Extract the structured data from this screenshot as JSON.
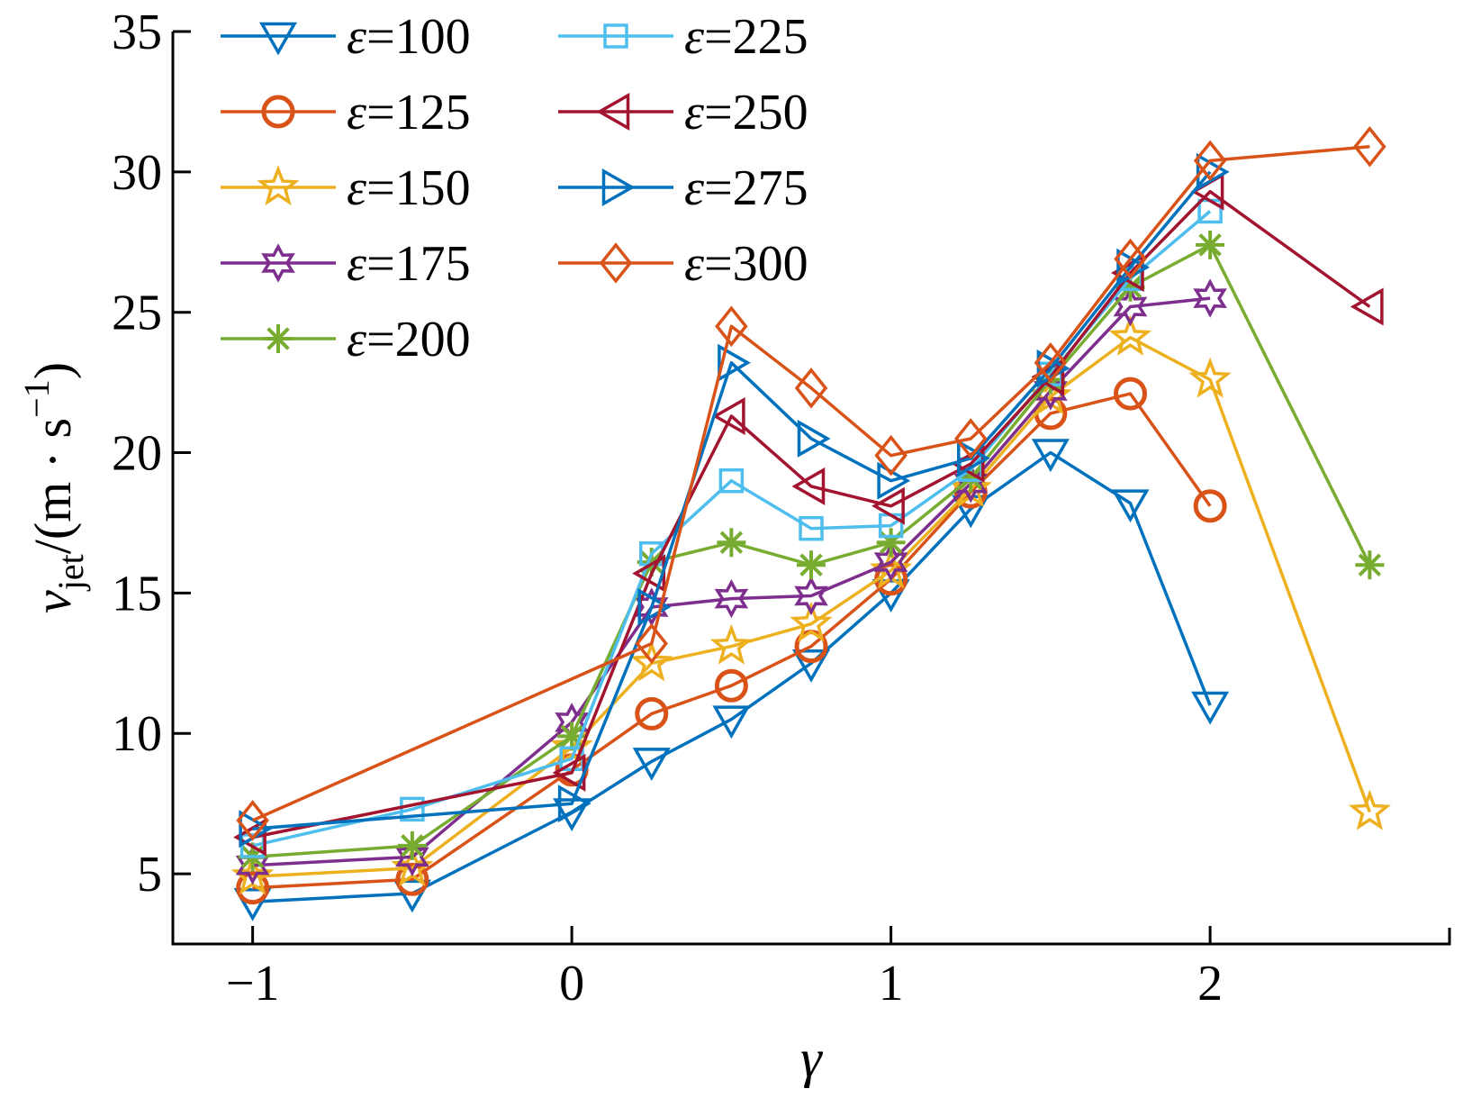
{
  "chart_data": {
    "type": "line",
    "title": "",
    "xlabel": "γ",
    "ylabel": "v_jet/(m·s⁻¹)",
    "ylabel_parts": {
      "var": "v",
      "sub": "jet",
      "unit_open": "/(m · s",
      "sup": "−1",
      "unit_close": ")"
    },
    "xlim": [
      -1.25,
      2.75
    ],
    "ylim": [
      2.5,
      35
    ],
    "xticks": [
      -1,
      0,
      1,
      2
    ],
    "xtick_labels": [
      "−1",
      "0",
      "1",
      "2"
    ],
    "yticks": [
      5,
      10,
      15,
      20,
      25,
      30,
      35
    ],
    "ytick_labels": [
      "5",
      "10",
      "15",
      "20",
      "25",
      "30",
      "35"
    ],
    "grid": false,
    "legend_position": "top-left",
    "legend_label_prefix": "ε",
    "legend_label_eq": "=",
    "series": [
      {
        "name": "ε=100",
        "legend_value": "100",
        "color": "#0072BD",
        "marker": "triangle-down",
        "x": [
          -1,
          -0.5,
          0,
          0.25,
          0.5,
          0.75,
          1,
          1.25,
          1.5,
          1.75,
          2
        ],
        "y": [
          4.0,
          4.3,
          7.2,
          9.0,
          10.5,
          12.5,
          15.0,
          18.0,
          20.0,
          18.2,
          11.0
        ]
      },
      {
        "name": "ε=125",
        "legend_value": "125",
        "color": "#D95319",
        "marker": "circle",
        "x": [
          -1,
          -0.5,
          0,
          0.25,
          0.5,
          0.75,
          1,
          1.25,
          1.5,
          1.75,
          2
        ],
        "y": [
          4.5,
          4.8,
          8.7,
          10.7,
          11.7,
          13.1,
          15.5,
          18.6,
          21.4,
          22.1,
          18.1
        ]
      },
      {
        "name": "ε=150",
        "legend_value": "150",
        "color": "#EDB120",
        "marker": "star5",
        "x": [
          -1,
          -0.5,
          0,
          0.25,
          0.5,
          0.75,
          1,
          1.25,
          1.5,
          1.75,
          2,
          2.5
        ],
        "y": [
          4.9,
          5.2,
          9.5,
          12.5,
          13.1,
          13.9,
          15.8,
          18.7,
          22.0,
          24.1,
          22.6,
          7.2
        ]
      },
      {
        "name": "ε=175",
        "legend_value": "175",
        "color": "#7E2F8E",
        "marker": "star6",
        "x": [
          -1,
          -0.5,
          0,
          0.25,
          0.5,
          0.75,
          1,
          1.25,
          1.5,
          1.75,
          2
        ],
        "y": [
          5.3,
          5.6,
          10.4,
          14.5,
          14.8,
          14.9,
          16.1,
          18.9,
          22.2,
          25.2,
          25.5
        ]
      },
      {
        "name": "ε=200",
        "legend_value": "200",
        "color": "#77AC30",
        "marker": "asterisk",
        "x": [
          -1,
          -0.5,
          0,
          0.25,
          0.5,
          0.75,
          1,
          1.25,
          1.5,
          1.75,
          2,
          2.5
        ],
        "y": [
          5.6,
          6.0,
          9.9,
          16.1,
          16.8,
          16.0,
          16.8,
          19.1,
          22.6,
          25.9,
          27.4,
          16.0
        ]
      },
      {
        "name": "ε=225",
        "legend_value": "225",
        "color": "#4DBEEE",
        "marker": "square",
        "x": [
          -1,
          -0.5,
          0,
          0.25,
          0.5,
          0.75,
          1,
          1.25,
          1.5,
          1.75,
          2
        ],
        "y": [
          6.0,
          7.3,
          9.1,
          16.4,
          19.0,
          17.3,
          17.4,
          19.4,
          22.8,
          26.2,
          28.6
        ]
      },
      {
        "name": "ε=250",
        "legend_value": "250",
        "color": "#A2142F",
        "marker": "triangle-left",
        "x": [
          -1,
          0,
          0.25,
          0.5,
          0.75,
          1,
          1.25,
          1.5,
          1.75,
          2,
          2.5
        ],
        "y": [
          6.3,
          8.6,
          15.7,
          21.3,
          18.8,
          18.1,
          19.6,
          22.7,
          26.4,
          29.3,
          25.2
        ]
      },
      {
        "name": "ε=275",
        "legend_value": "275",
        "color": "#0072BD",
        "marker": "triangle-right",
        "x": [
          -1,
          0,
          0.25,
          0.5,
          0.75,
          1,
          1.25,
          1.5,
          1.75,
          2
        ],
        "y": [
          6.6,
          7.5,
          14.5,
          23.2,
          20.5,
          19.0,
          19.8,
          23.0,
          26.6,
          30.0
        ]
      },
      {
        "name": "ε=300",
        "legend_value": "300",
        "color": "#D95319",
        "marker": "diamond",
        "x": [
          -1,
          0.25,
          0.5,
          0.75,
          1,
          1.25,
          1.5,
          1.75,
          2,
          2.5
        ],
        "y": [
          6.9,
          13.2,
          24.5,
          22.3,
          19.9,
          20.5,
          23.2,
          26.9,
          30.4,
          30.9
        ]
      }
    ]
  }
}
